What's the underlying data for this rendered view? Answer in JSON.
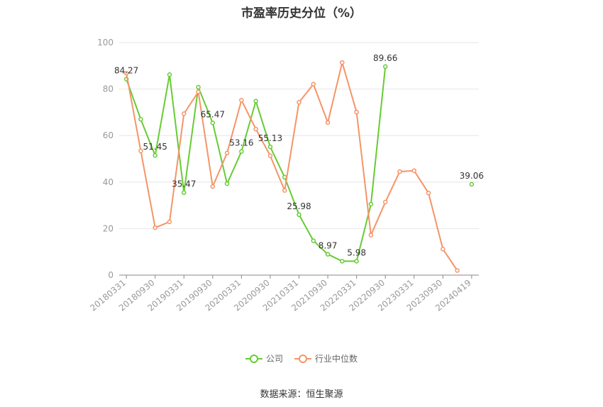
{
  "chart_data": {
    "type": "line",
    "title": "市盈率历史分位（%）",
    "xlabel": "",
    "ylabel": "",
    "ylim": [
      0,
      100
    ],
    "y_ticks": [
      0,
      20,
      40,
      60,
      80,
      100
    ],
    "x_tick_labels": [
      "20180331",
      "20180930",
      "20190331",
      "20190930",
      "20200331",
      "20200930",
      "20210331",
      "20210930",
      "20220331",
      "20220930",
      "20230331",
      "20230930",
      "20240419"
    ],
    "grid": true,
    "legend_position": "bottom",
    "x": [
      "20180331",
      "20180630",
      "20180930",
      "20181231",
      "20190331",
      "20190630",
      "20190930",
      "20191231",
      "20200331",
      "20200630",
      "20200930",
      "20201231",
      "20210331",
      "20210630",
      "20210930",
      "20211231",
      "20220331",
      "20220630",
      "20220930",
      "20221231",
      "20230331",
      "20230630",
      "20230930",
      "20231231",
      "20240419"
    ],
    "series": [
      {
        "name": "公司",
        "color": "#66cc33",
        "values": [
          84.27,
          67,
          51.45,
          86.2,
          35.47,
          80.8,
          65.47,
          39.3,
          53.16,
          74.8,
          55.13,
          42.1,
          25.98,
          14.8,
          8.97,
          5.98,
          5.98,
          30.5,
          89.66,
          null,
          null,
          null,
          null,
          null,
          39.06
        ],
        "labels": {
          "0": "84.27",
          "2": "51.45",
          "4": "35.47",
          "6": "65.47",
          "8": "53.16",
          "10": "55.13",
          "12": "25.98",
          "14": "8.97",
          "16": "5.98",
          "18": "89.66",
          "24": "39.06"
        }
      },
      {
        "name": "行业中位数",
        "color": "#f59467",
        "values": [
          86.8,
          53.4,
          20.4,
          22.9,
          69.4,
          78.8,
          38.1,
          52.5,
          75.2,
          62.8,
          51.3,
          36.4,
          74.3,
          82.1,
          65.6,
          91.4,
          70.1,
          17.2,
          31.4,
          44.5,
          44.9,
          35.3,
          11.2,
          2.0,
          null
        ]
      }
    ]
  },
  "source_text": "数据来源：恒生聚源"
}
